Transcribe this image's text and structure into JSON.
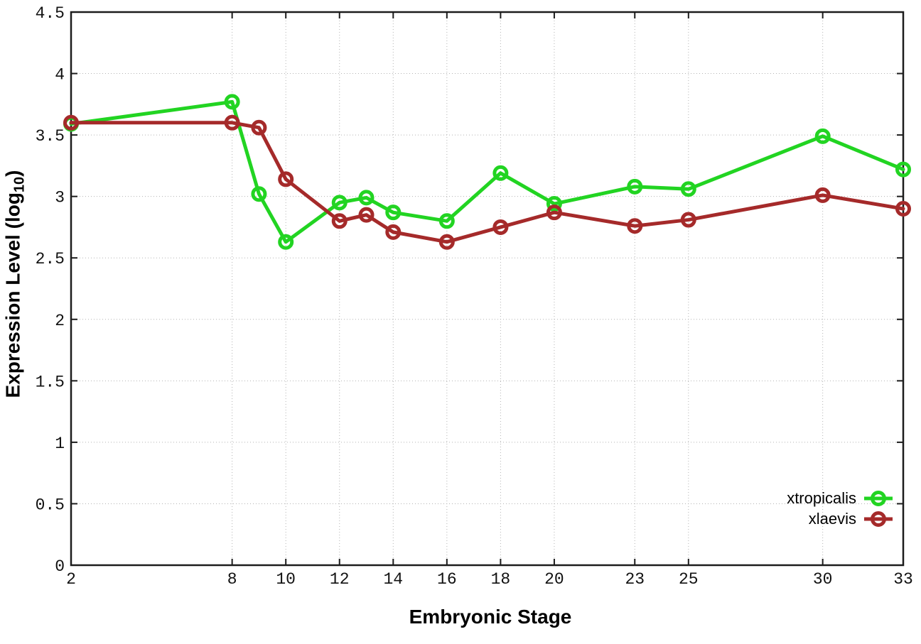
{
  "chart_data": {
    "type": "line",
    "title": "",
    "xlabel": "Embryonic Stage",
    "ylabel": "Expression Level (log10)",
    "ylabel_parts": {
      "main": "Expression Level (log",
      "sub": "10",
      "close": ")"
    },
    "xlim": [
      2,
      33
    ],
    "ylim": [
      0,
      4.5
    ],
    "x_ticks": [
      2,
      8,
      10,
      12,
      14,
      16,
      18,
      20,
      23,
      25,
      30,
      33
    ],
    "y_ticks": [
      0,
      0.5,
      1,
      1.5,
      2,
      2.5,
      3,
      3.5,
      4,
      4.5
    ],
    "grid": true,
    "legend_position": "bottom-right",
    "x": [
      2,
      8,
      9,
      10,
      12,
      13,
      14,
      16,
      18,
      20,
      23,
      25,
      30,
      33
    ],
    "series": [
      {
        "name": "xtropicalis",
        "color": "#22d422",
        "values": [
          3.59,
          3.77,
          3.02,
          2.63,
          2.95,
          2.99,
          2.87,
          2.8,
          3.19,
          2.94,
          3.08,
          3.06,
          3.49,
          3.22
        ]
      },
      {
        "name": "xlaevis",
        "color": "#a52a2a",
        "values": [
          3.6,
          3.6,
          3.56,
          3.14,
          2.8,
          2.85,
          2.71,
          2.63,
          2.75,
          2.87,
          2.76,
          2.81,
          3.01,
          2.9
        ]
      }
    ]
  },
  "colors": {
    "background": "#ffffff",
    "axis": "#1c1c1c",
    "grid": "#b3b3b3",
    "text": "#111111"
  }
}
